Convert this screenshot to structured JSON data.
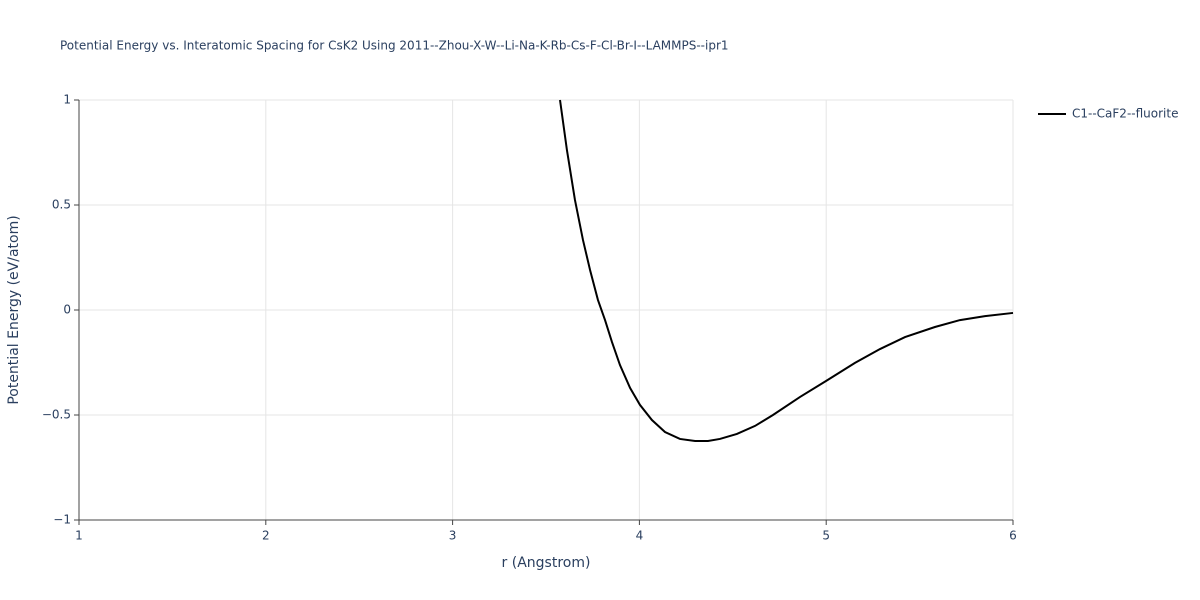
{
  "chart_data": {
    "type": "line",
    "title": "Potential Energy vs. Interatomic Spacing for CsK2 Using 2011--Zhou-X-W--Li-Na-K-Rb-Cs-F-Cl-Br-I--LAMMPS--ipr1",
    "xlabel": "r (Angstrom)",
    "ylabel": "Potential Energy (eV/atom)",
    "x": [
      3.575,
      3.612,
      3.655,
      3.698,
      3.736,
      3.778,
      3.816,
      3.853,
      3.896,
      3.95,
      4.003,
      4.067,
      4.137,
      4.217,
      4.298,
      4.367,
      4.431,
      4.522,
      4.619,
      4.715,
      4.86,
      4.999,
      5.154,
      5.288,
      5.422,
      5.582,
      5.716,
      5.85,
      6.0
    ],
    "series": [
      {
        "name": "C1--CaF2--fluorite",
        "color": "#000000",
        "values": [
          1,
          0.762,
          0.524,
          0.333,
          0.19,
          0.048,
          -0.048,
          -0.152,
          -0.262,
          -0.371,
          -0.452,
          -0.524,
          -0.581,
          -0.614,
          -0.624,
          -0.624,
          -0.614,
          -0.59,
          -0.552,
          -0.5,
          -0.414,
          -0.338,
          -0.252,
          -0.186,
          -0.129,
          -0.081,
          -0.048,
          -0.029,
          -0.014
        ]
      }
    ],
    "xlim": [
      1,
      6
    ],
    "xticks": [
      1,
      2,
      3,
      4,
      5,
      6
    ],
    "ylim": [
      -1,
      1
    ],
    "yticks": [
      {
        "value": -1,
        "label": "−1"
      },
      {
        "value": -0.5,
        "label": "−0.5"
      },
      0,
      0.5,
      1
    ],
    "grid": true,
    "legend": "outside-right"
  }
}
